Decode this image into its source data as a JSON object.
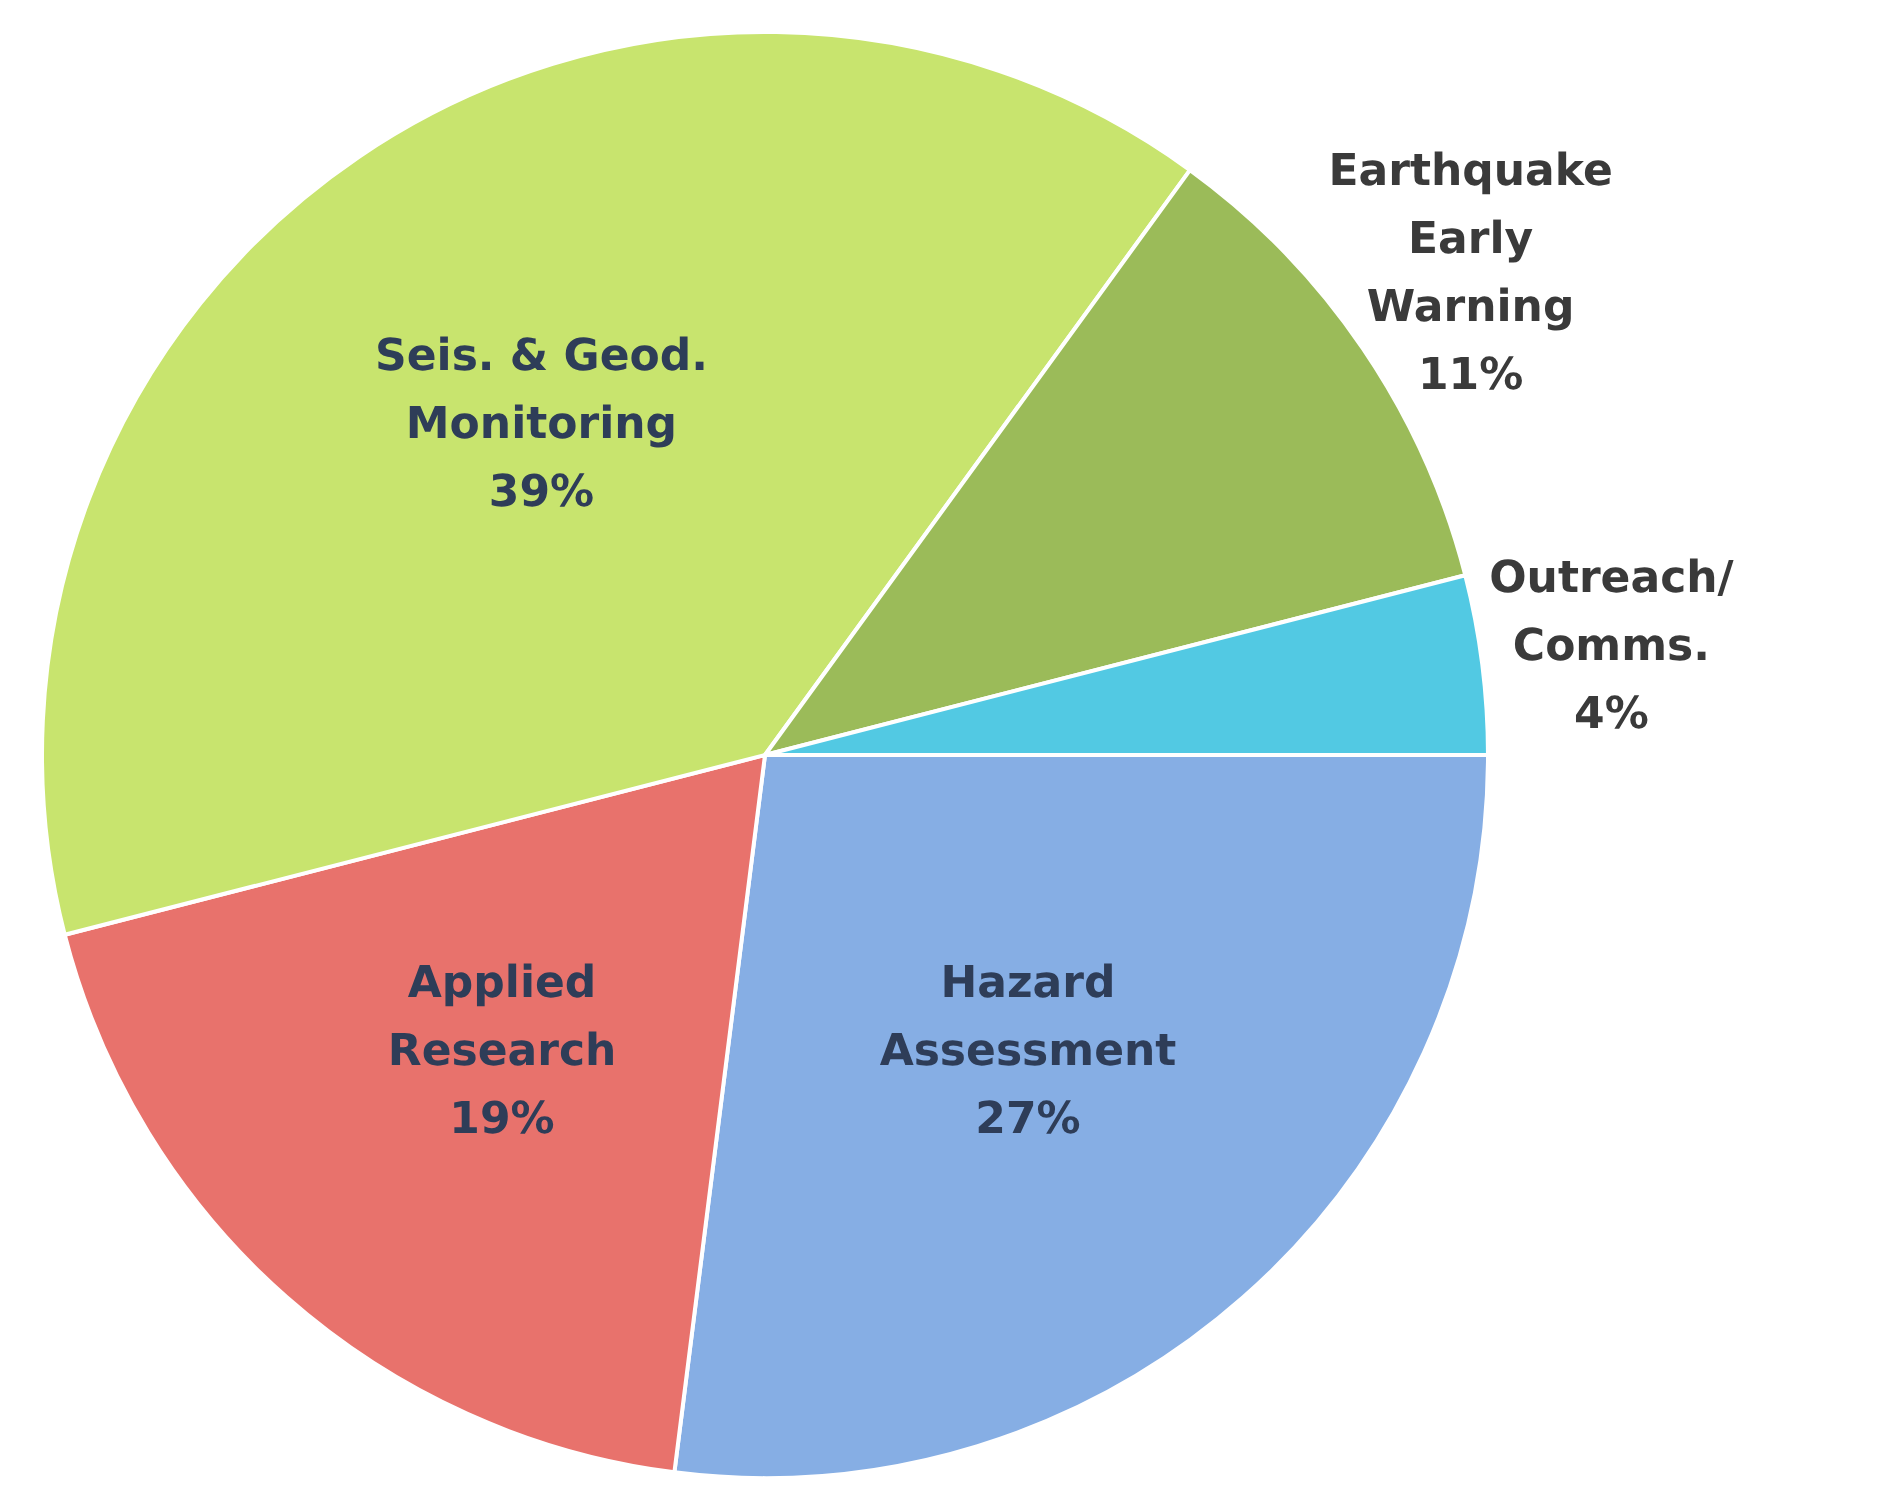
{
  "chart_data": {
    "type": "pie",
    "categories": [
      "Hazard Assessment",
      "Applied Research",
      "Seis. & Geod. Monitoring",
      "Earthquake Early Warning",
      "Outreach/ Comms."
    ],
    "values": [
      27,
      19,
      39,
      11,
      4
    ],
    "colors": [
      "#86aee4",
      "#e8726c",
      "#c8e46e",
      "#9bbb59",
      "#52c9e3"
    ],
    "value_labels": [
      "27%",
      "19%",
      "39%",
      "11%",
      "4%"
    ],
    "legend": false
  }
}
